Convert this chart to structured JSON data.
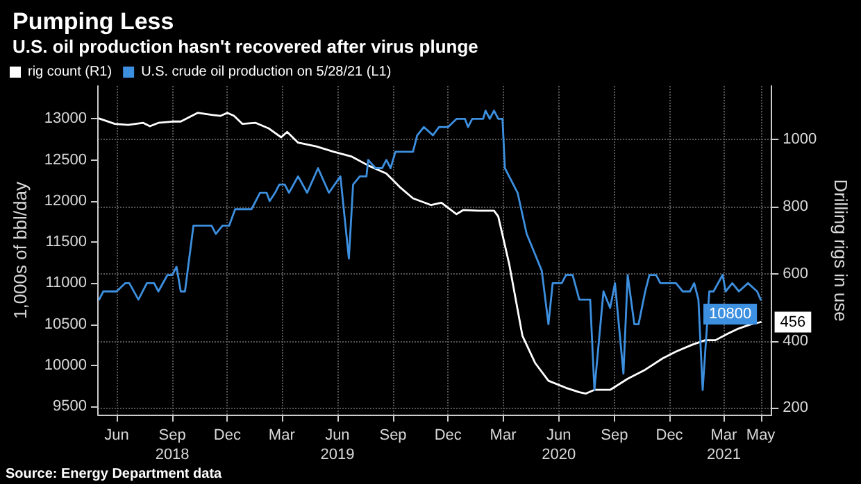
{
  "chart_data": {
    "type": "line",
    "title": "Pumping Less",
    "subtitle": "U.S. oil production hasn't recovered after virus plunge",
    "ylabel": "1,000s of bbl/day",
    "y2label": "Drilling rigs in use",
    "xlim": [
      "2018-05-28",
      "2021-06-15"
    ],
    "xticks": [
      {
        "value": "2018-06-28",
        "label": "Jun"
      },
      {
        "value": "2018-09-28",
        "label": "Sep\n2018"
      },
      {
        "value": "2018-12-28",
        "label": "Dec"
      },
      {
        "value": "2019-03-28",
        "label": "Mar"
      },
      {
        "value": "2019-06-28",
        "label": "Jun\n2019"
      },
      {
        "value": "2019-09-28",
        "label": "Sep"
      },
      {
        "value": "2019-12-28",
        "label": "Dec"
      },
      {
        "value": "2020-03-28",
        "label": "Mar"
      },
      {
        "value": "2020-06-28",
        "label": "Jun\n2020"
      },
      {
        "value": "2020-09-28",
        "label": "Sep"
      },
      {
        "value": "2020-12-28",
        "label": "Dec"
      },
      {
        "value": "2021-03-28",
        "label": "Mar\n2021"
      },
      {
        "value": "2021-05-28",
        "label": "May"
      }
    ],
    "ylim": [
      9400,
      13400
    ],
    "yticks": [
      9500,
      10000,
      10500,
      11000,
      11500,
      12000,
      12500,
      13000
    ],
    "y2lim": [
      180,
      1160
    ],
    "y2ticks": [
      200,
      400,
      600,
      800,
      1000
    ],
    "grid": true,
    "legend": "top left",
    "marker": "none",
    "line_style": "solid",
    "series": [
      {
        "name": "rig count (R1)",
        "color": "#ffffff",
        "axis": "y2",
        "x": [
          "2018-05-30",
          "2018-06-25",
          "2018-07-17",
          "2018-08-11",
          "2018-08-22",
          "2018-09-05",
          "2018-09-28",
          "2018-10-12",
          "2018-10-26",
          "2018-11-09",
          "2018-12-02",
          "2018-12-17",
          "2018-12-28",
          "2019-01-08",
          "2019-01-22",
          "2019-02-13",
          "2019-03-06",
          "2019-03-27",
          "2019-04-06",
          "2019-04-24",
          "2019-05-24",
          "2019-06-22",
          "2019-07-21",
          "2019-08-18",
          "2019-09-17",
          "2019-10-09",
          "2019-10-31",
          "2019-11-30",
          "2019-12-17",
          "2020-01-11",
          "2020-01-22",
          "2020-02-16",
          "2020-03-13",
          "2020-03-20",
          "2020-04-07",
          "2020-04-29",
          "2020-05-20",
          "2020-06-11",
          "2020-07-10",
          "2020-08-01",
          "2020-08-12",
          "2020-08-26",
          "2020-09-21",
          "2020-10-20",
          "2020-11-18",
          "2020-12-17",
          "2021-01-08",
          "2021-02-03",
          "2021-02-25",
          "2021-03-14",
          "2021-04-04",
          "2021-04-19",
          "2021-05-11",
          "2021-05-28"
        ],
        "values": [
          1063,
          1047,
          1044,
          1050,
          1040,
          1050,
          1054,
          1054,
          1067,
          1080,
          1074,
          1071,
          1080,
          1071,
          1047,
          1050,
          1034,
          1007,
          1023,
          991,
          980,
          964,
          950,
          923,
          899,
          859,
          825,
          805,
          812,
          778,
          790,
          788,
          788,
          771,
          630,
          415,
          334,
          281,
          260,
          247,
          243,
          254,
          254,
          287,
          314,
          348,
          368,
          388,
          402,
          402,
          422,
          435,
          449,
          456
        ],
        "value_labels": [
          null,
          null,
          null,
          null,
          null,
          null,
          null,
          null,
          null,
          null,
          null,
          null,
          null,
          null,
          null,
          null,
          null,
          null,
          null,
          null,
          null,
          null,
          null,
          null,
          null,
          null,
          null,
          null,
          null,
          null,
          null,
          null,
          null,
          null,
          null,
          null,
          null,
          null,
          null,
          null,
          null,
          null,
          null,
          null,
          null,
          null,
          null,
          null,
          null,
          null,
          null,
          null,
          null,
          "456"
        ]
      },
      {
        "name": "U.S. crude oil production on 5/28/21 (L1)",
        "color": "#3d8fdf",
        "x": [
          "2018-05-30",
          "2018-06-06",
          "2018-06-28",
          "2018-07-12",
          "2018-07-19",
          "2018-08-03",
          "2018-08-17",
          "2018-08-29",
          "2018-09-05",
          "2018-09-20",
          "2018-09-28",
          "2018-10-05",
          "2018-10-12",
          "2018-10-19",
          "2018-11-02",
          "2018-11-09",
          "2018-12-02",
          "2018-12-09",
          "2018-12-20",
          "2018-12-31",
          "2019-01-10",
          "2019-02-06",
          "2019-02-20",
          "2019-03-03",
          "2019-03-08",
          "2019-03-17",
          "2019-03-24",
          "2019-04-02",
          "2019-04-09",
          "2019-04-24",
          "2019-05-09",
          "2019-05-27",
          "2019-06-14",
          "2019-07-03",
          "2019-07-17",
          "2019-07-24",
          "2019-08-04",
          "2019-08-15",
          "2019-08-18",
          "2019-08-30",
          "2019-09-10",
          "2019-09-17",
          "2019-09-24",
          "2019-10-02",
          "2019-10-31",
          "2019-11-07",
          "2019-11-18",
          "2019-12-03",
          "2019-12-13",
          "2019-12-28",
          "2020-01-11",
          "2020-01-25",
          "2020-01-30",
          "2020-02-06",
          "2020-02-24",
          "2020-02-28",
          "2020-03-06",
          "2020-03-13",
          "2020-03-20",
          "2020-03-27",
          "2020-03-31",
          "2020-04-21",
          "2020-05-06",
          "2020-05-20",
          "2020-05-31",
          "2020-06-11",
          "2020-06-18",
          "2020-07-03",
          "2020-07-10",
          "2020-07-21",
          "2020-08-01",
          "2020-08-08",
          "2020-08-19",
          "2020-08-26",
          "2020-09-10",
          "2020-09-21",
          "2020-09-29",
          "2020-10-13",
          "2020-10-20",
          "2020-10-31",
          "2020-11-07",
          "2020-11-18",
          "2020-11-25",
          "2020-12-06",
          "2020-12-13",
          "2021-01-08",
          "2021-01-19",
          "2021-01-31",
          "2021-02-07",
          "2021-02-14",
          "2021-02-21",
          "2021-03-04",
          "2021-03-11",
          "2021-03-26",
          "2021-03-31",
          "2021-04-11",
          "2021-04-22",
          "2021-05-07",
          "2021-05-22",
          "2021-05-28"
        ],
        "values": [
          10800,
          10900,
          10900,
          11000,
          11000,
          10800,
          11000,
          11000,
          10900,
          11100,
          11100,
          11200,
          10900,
          10900,
          11700,
          11700,
          11700,
          11600,
          11700,
          11700,
          11900,
          11900,
          12100,
          12100,
          12000,
          12100,
          12200,
          12200,
          12100,
          12300,
          12100,
          12400,
          12100,
          12300,
          11300,
          12200,
          12300,
          12300,
          12500,
          12400,
          12400,
          12500,
          12400,
          12600,
          12600,
          12800,
          12900,
          12800,
          12900,
          12900,
          13000,
          13000,
          12900,
          13000,
          13000,
          13100,
          13000,
          13100,
          13000,
          13000,
          12400,
          12100,
          11600,
          11350,
          11150,
          10500,
          11000,
          11000,
          11100,
          11100,
          10800,
          10800,
          10800,
          9700,
          10900,
          10700,
          11000,
          9900,
          11100,
          10500,
          10500,
          10900,
          11100,
          11100,
          11000,
          11000,
          10900,
          10900,
          11000,
          10800,
          9700,
          10900,
          10900,
          11100,
          10900,
          11000,
          10900,
          11000,
          10900,
          10800
        ],
        "value_labels": [
          null,
          null,
          null,
          null,
          null,
          null,
          null,
          null,
          null,
          null,
          null,
          null,
          null,
          null,
          null,
          null,
          null,
          null,
          null,
          null,
          null,
          null,
          null,
          null,
          null,
          null,
          null,
          null,
          null,
          null,
          null,
          null,
          null,
          null,
          null,
          null,
          null,
          null,
          null,
          null,
          null,
          null,
          null,
          null,
          null,
          null,
          null,
          null,
          null,
          null,
          null,
          null,
          null,
          null,
          null,
          null,
          null,
          null,
          null,
          null,
          null,
          null,
          null,
          null,
          null,
          null,
          null,
          null,
          null,
          null,
          null,
          null,
          null,
          null,
          null,
          null,
          null,
          null,
          null,
          null,
          null,
          null,
          null,
          null,
          null,
          null,
          null,
          null,
          null,
          null,
          null,
          null,
          null,
          null,
          null,
          null,
          null,
          null,
          null,
          "10800"
        ]
      }
    ],
    "annotations": [
      "Source: Energy Department data"
    ]
  }
}
